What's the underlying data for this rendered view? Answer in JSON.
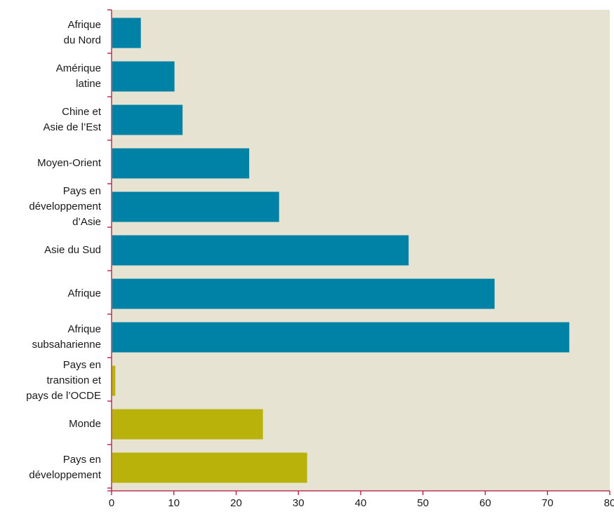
{
  "colors": {
    "plot_background": "#e6e3d3",
    "axis_color": "#b0153f",
    "region_bar_color": "#0082a6",
    "aggregate_bar_color": "#b8b20a",
    "text_color": "#1a1a1a"
  },
  "chart_data": {
    "type": "bar",
    "orientation": "horizontal",
    "title": "",
    "xlabel": "",
    "ylabel": "",
    "xlim": [
      0,
      80
    ],
    "x_ticks": [
      "0",
      "10",
      "20",
      "30",
      "40",
      "50",
      "60",
      "70",
      "80"
    ],
    "grid": false,
    "legend": "none",
    "categories": [
      [
        "Afrique",
        "du Nord"
      ],
      [
        "Amérique",
        "latine"
      ],
      [
        "Chine et",
        "Asie de l’Est"
      ],
      [
        "Moyen-Orient"
      ],
      [
        "Pays en",
        "développement",
        "d’Asie"
      ],
      [
        "Asie du Sud"
      ],
      [
        "Afrique"
      ],
      [
        "Afrique",
        "subsaharienne"
      ],
      [
        "Pays en",
        "transition et",
        "pays de l’OCDE"
      ],
      [
        "Monde"
      ],
      [
        "Pays en",
        "développement"
      ]
    ],
    "values": [
      4.7,
      10.1,
      11.4,
      22.1,
      26.9,
      47.7,
      61.5,
      73.5,
      0.6,
      24.3,
      31.4
    ],
    "bar_color_keys": [
      "region",
      "region",
      "region",
      "region",
      "region",
      "region",
      "region",
      "region",
      "aggregate",
      "aggregate",
      "aggregate"
    ]
  }
}
